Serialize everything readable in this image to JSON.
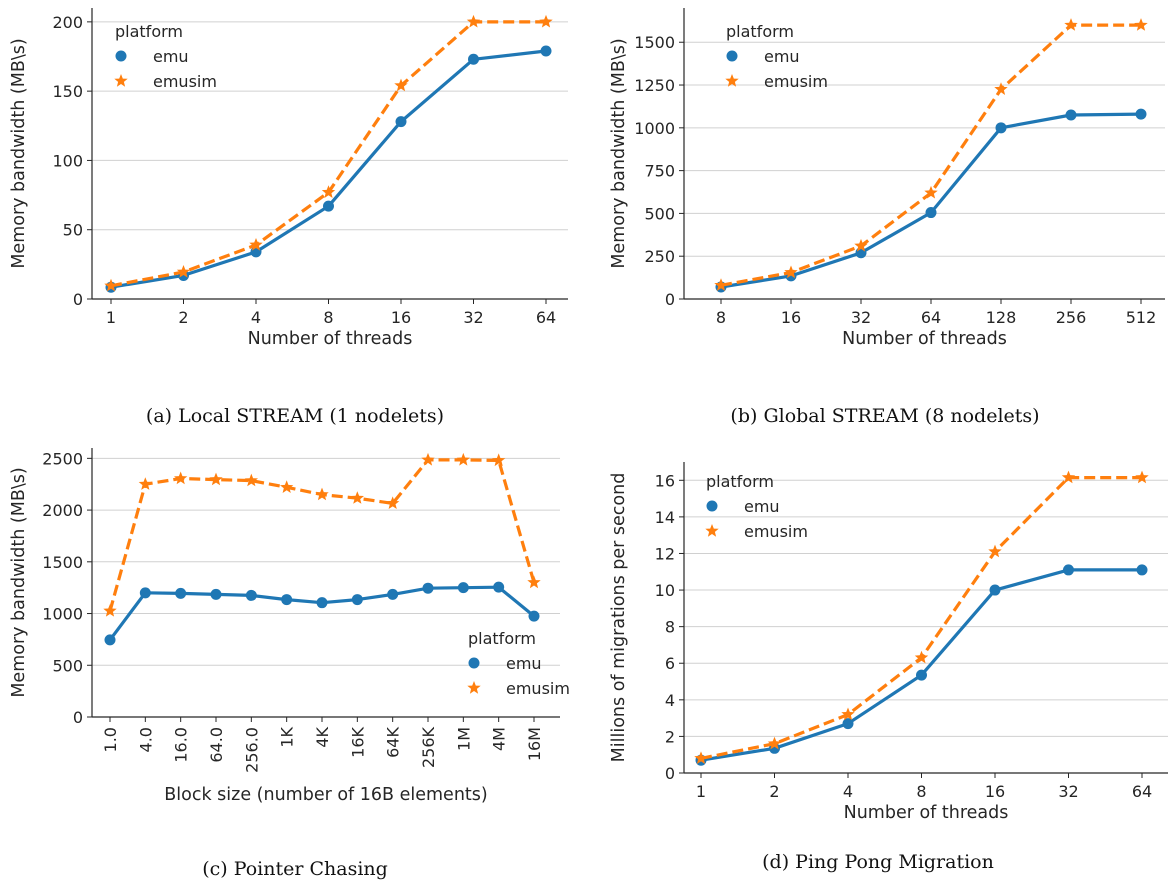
{
  "colors": {
    "emu": "#1f77b4",
    "emusim": "#ff7f0e"
  },
  "chart_data": [
    {
      "type": "line",
      "caption": "(a) Local STREAM (1 nodelets)",
      "xlabel": "Number of threads",
      "ylabel": "Memory bandwidth (MB\\s)",
      "categories": [
        "1",
        "2",
        "4",
        "8",
        "16",
        "32",
        "64"
      ],
      "ylim": [
        0,
        210
      ],
      "yticks": [
        0,
        50,
        100,
        150,
        200
      ],
      "legend": {
        "title": "platform",
        "position": "top-left"
      },
      "grid": "horizontal",
      "series": [
        {
          "name": "emu",
          "marker": "circle",
          "values": [
            8.5,
            17,
            34,
            67,
            128,
            173,
            179
          ]
        },
        {
          "name": "emusim",
          "marker": "star",
          "values": [
            9.5,
            19.5,
            39,
            77,
            154,
            200,
            200
          ]
        }
      ]
    },
    {
      "type": "line",
      "caption": "(b) Global STREAM (8 nodelets)",
      "xlabel": "Number of threads",
      "ylabel": "Memory bandwidth (MB\\s)",
      "categories": [
        "8",
        "16",
        "32",
        "64",
        "128",
        "256",
        "512"
      ],
      "ylim": [
        0,
        1700
      ],
      "yticks": [
        0,
        250,
        500,
        750,
        1000,
        1250,
        1500
      ],
      "legend": {
        "title": "platform",
        "position": "top-left"
      },
      "grid": "horizontal",
      "series": [
        {
          "name": "emu",
          "marker": "circle",
          "values": [
            70,
            135,
            270,
            505,
            1000,
            1075,
            1080
          ]
        },
        {
          "name": "emusim",
          "marker": "star",
          "values": [
            80,
            155,
            310,
            620,
            1225,
            1600,
            1600
          ]
        }
      ]
    },
    {
      "type": "line",
      "caption": "(c) Pointer Chasing",
      "xlabel": "Block size (number of 16B elements)",
      "ylabel": "Memory bandwidth (MB\\s)",
      "categories": [
        "1.0",
        "4.0",
        "16.0",
        "64.0",
        "256.0",
        "1K",
        "4K",
        "16K",
        "64K",
        "256K",
        "1M",
        "4M",
        "16M"
      ],
      "ylim": [
        0,
        2600
      ],
      "yticks": [
        0,
        500,
        1000,
        1500,
        2000,
        2500
      ],
      "legend": {
        "title": "platform",
        "position": "lower-right"
      },
      "grid": "horizontal",
      "series": [
        {
          "name": "emu",
          "marker": "circle",
          "values": [
            745,
            1200,
            1195,
            1185,
            1175,
            1135,
            1105,
            1135,
            1185,
            1245,
            1250,
            1255,
            975
          ]
        },
        {
          "name": "emusim",
          "marker": "star",
          "values": [
            1025,
            2250,
            2305,
            2295,
            2285,
            2220,
            2150,
            2115,
            2065,
            2485,
            2485,
            2480,
            1300
          ]
        }
      ]
    },
    {
      "type": "line",
      "caption": "(d) Ping Pong Migration",
      "xlabel": "Number of threads",
      "ylabel": "Millions of migrations per second",
      "categories": [
        "1",
        "2",
        "4",
        "8",
        "16",
        "32",
        "64"
      ],
      "ylim": [
        0,
        17
      ],
      "yticks": [
        0,
        2,
        4,
        6,
        8,
        10,
        12,
        14,
        16
      ],
      "legend": {
        "title": "platform",
        "position": "top-left"
      },
      "grid": "horizontal",
      "series": [
        {
          "name": "emu",
          "marker": "circle",
          "values": [
            0.7,
            1.35,
            2.7,
            5.35,
            10.0,
            11.1,
            11.1
          ]
        },
        {
          "name": "emusim",
          "marker": "star",
          "values": [
            0.8,
            1.6,
            3.2,
            6.3,
            12.1,
            16.15,
            16.15
          ]
        }
      ]
    }
  ]
}
